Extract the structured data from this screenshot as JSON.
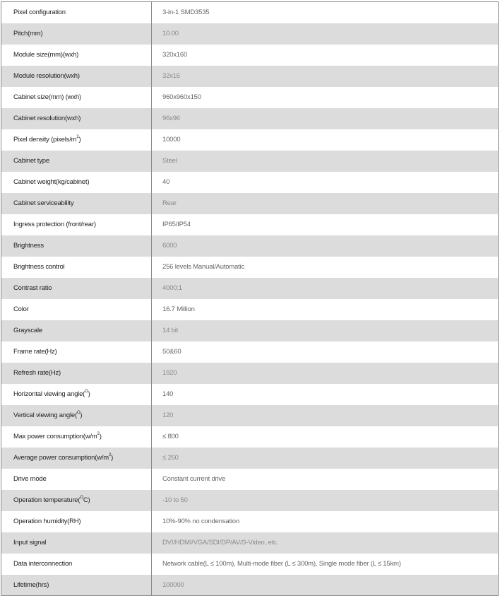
{
  "specs": [
    {
      "label": "Pixel configuration",
      "value": "3-in-1 SMD3535"
    },
    {
      "label": "Pitch(mm)",
      "value": "10.00"
    },
    {
      "label": "Module size(mm)(wxh)",
      "value": "320x160"
    },
    {
      "label": "Module resolution(wxh)",
      "value": "32x16"
    },
    {
      "label": "Cabinet size(mm) (wxh)",
      "value": "960x960x150"
    },
    {
      "label": "Cabinet resolution(wxh)",
      "value": "96x96"
    },
    {
      "label": "Pixel density (pixels/m",
      "sup": "2",
      "post": ")",
      "value": "10000"
    },
    {
      "label": "Cabinet type",
      "value": "Steel"
    },
    {
      "label": "Cabinet weight(kg/cabinet)",
      "value": "40"
    },
    {
      "label": "Cabinet serviceability",
      "value": "Rear"
    },
    {
      "label": "Ingress protection (front/rear)",
      "value": "IP65/IP54"
    },
    {
      "label": "Brightness",
      "value": "6000"
    },
    {
      "label": "Brightness control",
      "value": "256 levels Manual/Automatic"
    },
    {
      "label": "Contrast ratio",
      "value": "4000:1"
    },
    {
      "label": "Color",
      "value": "16.7 Million"
    },
    {
      "label": "Grayscale",
      "value": "14 bit"
    },
    {
      "label": "Frame rate(Hz)",
      "value": "50&60"
    },
    {
      "label": "Refresh rate(Hz)",
      "value": "1920"
    },
    {
      "label": "Horizontal viewing angle(",
      "sup": "O",
      "post": ")",
      "value": "140"
    },
    {
      "label": "Vertical viewing angle(",
      "sup": "O",
      "post": ")",
      "value": "120"
    },
    {
      "label": "Max power consumption(w/m",
      "sup": "2",
      "post": ")",
      "value": "≤ 800"
    },
    {
      "label": "Average power consumption(w/m",
      "sup": "2",
      "post": ")",
      "value": "≤ 260"
    },
    {
      "label": "Drive mode",
      "value": "Constant current drive"
    },
    {
      "label": "Operation temperature(",
      "sup": "O",
      "post": "C)",
      "value": "-10 to 50"
    },
    {
      "label": "Operation humidity(RH)",
      "value": "10%-90% no condensation"
    },
    {
      "label": "Input signal",
      "value": "DVI/HDMI/VGA/SDI/DP/AV/S-Video, etc."
    },
    {
      "label": "Data interconnection",
      "value": "Network cable(L ≤ 100m), Multi-mode fiber (L ≤ 300m), Single mode fiber (L ≤ 15km)"
    },
    {
      "label": "Lifetime(hrs)",
      "value": "100000"
    }
  ]
}
